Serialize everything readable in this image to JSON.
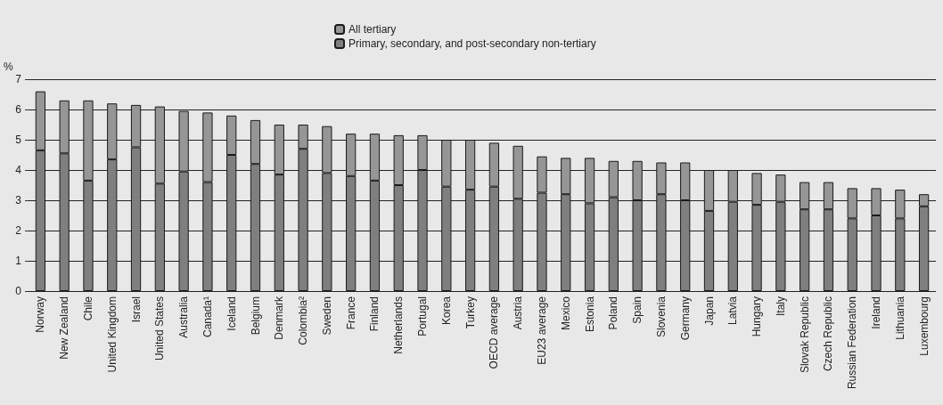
{
  "chart_data": {
    "type": "bar",
    "stacked": true,
    "ylabel": "%",
    "legend": "top",
    "grid": "y",
    "categories": [
      "Norway",
      "New Zealand",
      "Chile",
      "United Kingdom",
      "Israel",
      "United States",
      "Australia",
      "Canada¹",
      "Iceland",
      "Belgium",
      "Denmark",
      "Colombia²",
      "Sweden",
      "France",
      "Finland",
      "Netherlands",
      "Portugal",
      "Korea",
      "Turkey",
      "OECD average",
      "Austria",
      "EU23 average",
      "Mexico",
      "Estonia",
      "Poland",
      "Spain",
      "Slovenia",
      "Germany",
      "Japan",
      "Latvia",
      "Hungary",
      "Italy",
      "Slovak Republic",
      "Czech Republic",
      "Russian Federation",
      "Ireland",
      "Lithuania",
      "Luxembourg"
    ],
    "series": [
      {
        "name": "Primary, secondary, and post-secondary non-tertiary",
        "color": "#7f7f7f",
        "values": [
          4.65,
          4.55,
          3.65,
          4.35,
          4.75,
          3.55,
          3.95,
          3.6,
          4.5,
          4.2,
          3.85,
          4.7,
          3.9,
          3.8,
          3.65,
          3.5,
          4.0,
          3.45,
          3.35,
          3.45,
          3.05,
          3.25,
          3.2,
          2.9,
          3.1,
          3.0,
          3.2,
          3.0,
          2.65,
          2.95,
          2.85,
          2.95,
          2.7,
          2.7,
          2.4,
          2.5,
          2.4,
          2.8
        ]
      },
      {
        "name": "All tertiary",
        "color": "#969696",
        "values": [
          1.95,
          1.75,
          2.65,
          1.85,
          1.4,
          2.55,
          2.0,
          2.3,
          1.3,
          1.45,
          1.65,
          0.8,
          1.55,
          1.4,
          1.55,
          1.65,
          1.15,
          1.55,
          1.65,
          1.45,
          1.75,
          1.2,
          1.2,
          1.5,
          1.2,
          1.3,
          1.05,
          1.25,
          1.35,
          1.05,
          1.05,
          0.9,
          0.9,
          0.9,
          1.0,
          0.9,
          0.95,
          0.4
        ]
      }
    ],
    "ylim": [
      0,
      7
    ],
    "yticks": [
      0,
      1,
      2,
      3,
      4,
      5,
      6,
      7
    ]
  }
}
